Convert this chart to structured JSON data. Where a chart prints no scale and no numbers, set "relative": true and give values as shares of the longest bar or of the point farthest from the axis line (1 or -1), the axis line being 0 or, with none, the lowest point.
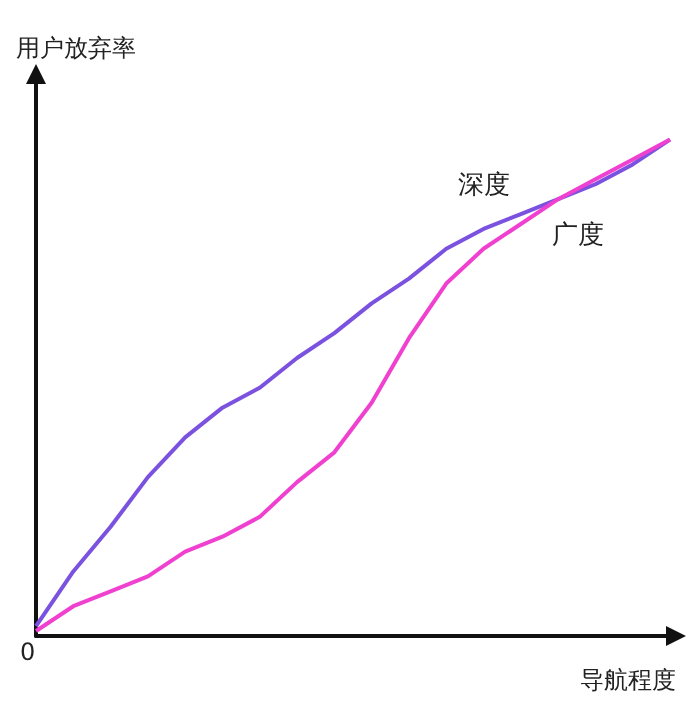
{
  "chart_data": {
    "type": "line",
    "relative": true,
    "xlabel": "导航程度",
    "ylabel": "用户放弃率",
    "annotations": [
      "0"
    ],
    "grid": false,
    "legend": false,
    "marker": "none",
    "line_style": "solid",
    "categories": [
      null,
      null,
      null,
      null,
      null,
      null,
      null,
      null,
      null,
      null,
      null,
      null,
      null,
      null,
      null,
      null,
      null,
      null
    ],
    "series": [
      {
        "name": "深度",
        "color": "#7b52e0",
        "values": [
          0.02,
          0.13,
          0.22,
          0.32,
          0.4,
          0.46,
          0.5,
          0.56,
          0.61,
          0.67,
          0.72,
          0.78,
          0.82,
          0.85,
          0.88,
          0.91,
          0.95,
          1
        ]
      },
      {
        "name": "广度",
        "color": "#f040d0",
        "values": [
          0.01,
          0.06,
          0.09,
          0.12,
          0.17,
          0.2,
          0.24,
          0.31,
          0.37,
          0.47,
          0.6,
          0.71,
          0.78,
          0.83,
          0.88,
          0.92,
          0.96,
          1
        ]
      }
    ]
  }
}
